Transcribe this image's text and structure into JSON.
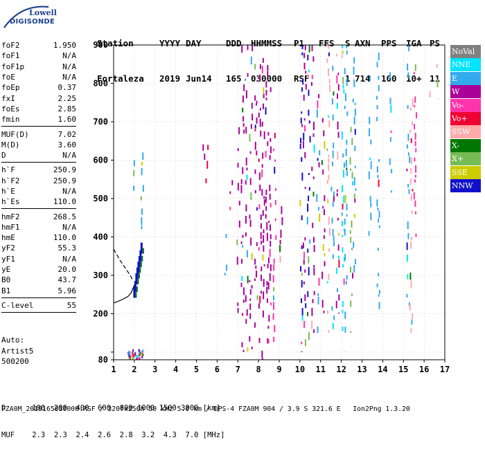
{
  "logo": {
    "line1": "Lowell",
    "line2": "DIGISONDE"
  },
  "header": {
    "labels": [
      "Station",
      "YYYY",
      "DAY",
      "DDD",
      "HHMMSS",
      "P1",
      "FFS",
      "S",
      "AXN",
      "PPS",
      "IGA",
      "PS"
    ],
    "values": [
      "Fortaleza",
      "2019",
      "Jun14",
      "165",
      "030000",
      "RSF",
      "",
      "1",
      "714",
      "100",
      "10+",
      "11"
    ]
  },
  "params": {
    "group1": [
      {
        "name": "foF2",
        "value": "1.950"
      },
      {
        "name": "foF1",
        "value": "N/A"
      },
      {
        "name": "foF1p",
        "value": "N/A"
      },
      {
        "name": "foE",
        "value": "N/A"
      },
      {
        "name": "foEp",
        "value": "0.37"
      },
      {
        "name": "fxI",
        "value": "2.25"
      },
      {
        "name": "foEs",
        "value": "2.85"
      },
      {
        "name": "fmin",
        "value": "1.60"
      }
    ],
    "group2": [
      {
        "name": "MUF(D)",
        "value": "7.02"
      },
      {
        "name": "M(D)",
        "value": "3.60"
      },
      {
        "name": "D",
        "value": "N/A"
      }
    ],
    "group3": [
      {
        "name": "h`F",
        "value": "250.9"
      },
      {
        "name": "h`F2",
        "value": "250.9"
      },
      {
        "name": "h`E",
        "value": "N/A"
      },
      {
        "name": "h`Es",
        "value": "110.0"
      }
    ],
    "group4": [
      {
        "name": "hmF2",
        "value": "268.5"
      },
      {
        "name": "hmF1",
        "value": "N/A"
      },
      {
        "name": "hmE",
        "value": "110.0"
      },
      {
        "name": "yF2",
        "value": "55.3"
      },
      {
        "name": "yF1",
        "value": "N/A"
      },
      {
        "name": "yE",
        "value": "20.0"
      },
      {
        "name": "B0",
        "value": "43.7"
      },
      {
        "name": "B1",
        "value": "5.96"
      }
    ],
    "group5": [
      {
        "name": "C-level",
        "value": "55"
      }
    ]
  },
  "auto": {
    "line1": "Auto:",
    "line2": "Artist5",
    "line3": "500200"
  },
  "legend": [
    {
      "label": "NoVal",
      "color": "#808080"
    },
    {
      "label": "NNE",
      "color": "#00e5ff"
    },
    {
      "label": "E",
      "color": "#33aaee"
    },
    {
      "label": "W",
      "color": "#aa0099"
    },
    {
      "label": "Vo-",
      "color": "#ff33aa"
    },
    {
      "label": "Vo+",
      "color": "#ee0033"
    },
    {
      "label": "SSW",
      "color": "#ffaaaa"
    },
    {
      "label": "X-",
      "color": "#007700"
    },
    {
      "label": "X+",
      "color": "#77bb55"
    },
    {
      "label": "SSE",
      "color": "#cccc00"
    },
    {
      "label": "NNW",
      "color": "#1111cc"
    }
  ],
  "footer": {
    "line1": "D      100  200  400  600  800 1000 1500 3000 [km]",
    "line2": "MUF    2.3  2.3  2.4  2.6  2.8  3.2  4.3  7.0 [MHz]",
    "line3": "FZA0M_2019165030000.RSF / 320fx256h 50 kHz 5.0 km / DPS-4 FZA0M 904 / 3.9 S 321.6 E   Ion2Png 1.3.20"
  },
  "chart_data": {
    "type": "scatter",
    "xlim": [
      1,
      17
    ],
    "ylim": [
      80,
      900
    ],
    "x_ticks": [
      1,
      2,
      3,
      4,
      5,
      6,
      7,
      8,
      9,
      10,
      11,
      12,
      13,
      14,
      15,
      16,
      17
    ],
    "y_ticks": [
      80,
      100,
      200,
      300,
      400,
      500,
      600,
      700,
      800,
      900
    ],
    "y_tick_labels": [
      "80",
      "",
      "200",
      "300",
      "400",
      "500",
      "600",
      "700",
      "800",
      "900"
    ],
    "grid": true,
    "trace_o": {
      "x": [
        1.95,
        2.0,
        2.05,
        2.1,
        2.15,
        2.2,
        2.25,
        2.3
      ],
      "y": [
        245,
        260,
        280,
        295,
        310,
        325,
        340,
        360
      ],
      "color": "#1111cc"
    },
    "profile_curve": {
      "x": [
        1.0,
        1.35,
        1.7,
        1.85,
        1.95,
        2.0
      ],
      "y": [
        228,
        235,
        245,
        255,
        268,
        275
      ]
    },
    "profile_upper": {
      "x": [
        1.0,
        1.3,
        1.55,
        1.8,
        1.9
      ],
      "y": [
        368,
        340,
        320,
        300,
        290
      ]
    },
    "echo_columns": [
      {
        "x": 1.9,
        "ymin": 520,
        "ymax": 600,
        "color": "#33aaee"
      },
      {
        "x": 2.35,
        "ymin": 420,
        "ymax": 620,
        "color": "#33aaee"
      },
      {
        "x": 5.3,
        "ymin": 520,
        "ymax": 680,
        "color": "#aa0099"
      },
      {
        "x": 5.5,
        "ymin": 540,
        "ymax": 640,
        "color": "#ee0033"
      },
      {
        "x": 6.4,
        "ymin": 300,
        "ymax": 470,
        "color": "#33aaee"
      },
      {
        "x": 6.65,
        "ymin": 420,
        "ymax": 600,
        "color": "#aa0099"
      },
      {
        "x": 7.0,
        "ymin": 200,
        "ymax": 700,
        "color": "#aa0099"
      },
      {
        "x": 7.2,
        "ymin": 100,
        "ymax": 900,
        "color": "#aa0099"
      },
      {
        "x": 7.4,
        "ymin": 100,
        "ymax": 900,
        "color": "#aa0099"
      },
      {
        "x": 7.6,
        "ymin": 100,
        "ymax": 900,
        "color": "#aa0099"
      },
      {
        "x": 7.85,
        "ymin": 150,
        "ymax": 900,
        "color": "#aa0099"
      },
      {
        "x": 8.05,
        "ymin": 100,
        "ymax": 900,
        "color": "#aa0099"
      },
      {
        "x": 8.2,
        "ymin": 80,
        "ymax": 900,
        "color": "#aa0099"
      },
      {
        "x": 8.35,
        "ymin": 100,
        "ymax": 900,
        "color": "#aa0099"
      },
      {
        "x": 8.5,
        "ymin": 100,
        "ymax": 820,
        "color": "#aa0099"
      },
      {
        "x": 8.75,
        "ymin": 100,
        "ymax": 700,
        "color": "#ff33aa"
      },
      {
        "x": 9.05,
        "ymin": 320,
        "ymax": 480,
        "color": "#aa0099"
      },
      {
        "x": 10.05,
        "ymin": 100,
        "ymax": 900,
        "color": "#1111cc"
      },
      {
        "x": 10.2,
        "ymin": 100,
        "ymax": 900,
        "color": "#aa0099"
      },
      {
        "x": 10.4,
        "ymin": 100,
        "ymax": 900,
        "color": "#1111cc"
      },
      {
        "x": 10.6,
        "ymin": 150,
        "ymax": 900,
        "color": "#aa0099"
      },
      {
        "x": 10.85,
        "ymin": 150,
        "ymax": 800,
        "color": "#33aaee"
      },
      {
        "x": 11.1,
        "ymin": 200,
        "ymax": 720,
        "color": "#aa0099"
      },
      {
        "x": 11.35,
        "ymin": 150,
        "ymax": 900,
        "color": "#ffaaaa"
      },
      {
        "x": 11.55,
        "ymin": 150,
        "ymax": 900,
        "color": "#33aaee"
      },
      {
        "x": 11.8,
        "ymin": 200,
        "ymax": 900,
        "color": "#aa0099"
      },
      {
        "x": 12.05,
        "ymin": 100,
        "ymax": 900,
        "color": "#00e5ff"
      },
      {
        "x": 12.2,
        "ymin": 150,
        "ymax": 900,
        "color": "#33aaee"
      },
      {
        "x": 12.45,
        "ymin": 150,
        "ymax": 800,
        "color": "#77bb55"
      },
      {
        "x": 12.6,
        "ymin": 300,
        "ymax": 880,
        "color": "#33aaee"
      },
      {
        "x": 13.35,
        "ymin": 400,
        "ymax": 840,
        "color": "#33aaee"
      },
      {
        "x": 13.75,
        "ymin": 180,
        "ymax": 880,
        "color": "#33aaee"
      },
      {
        "x": 14.35,
        "ymin": 500,
        "ymax": 850,
        "color": "#33aaee"
      },
      {
        "x": 15.2,
        "ymin": 200,
        "ymax": 900,
        "color": "#33aaee"
      },
      {
        "x": 15.35,
        "ymin": 150,
        "ymax": 760,
        "color": "#ffaaaa"
      },
      {
        "x": 15.55,
        "ymin": 400,
        "ymax": 850,
        "color": "#ff33aa"
      },
      {
        "x": 16.2,
        "ymin": 760,
        "ymax": 780,
        "color": "#ffaaaa"
      },
      {
        "x": 16.6,
        "ymin": 760,
        "ymax": 850,
        "color": "#ffaaaa"
      }
    ],
    "bottom_cluster": {
      "x": [
        1.65,
        2.4
      ],
      "y": [
        80,
        105
      ]
    }
  }
}
